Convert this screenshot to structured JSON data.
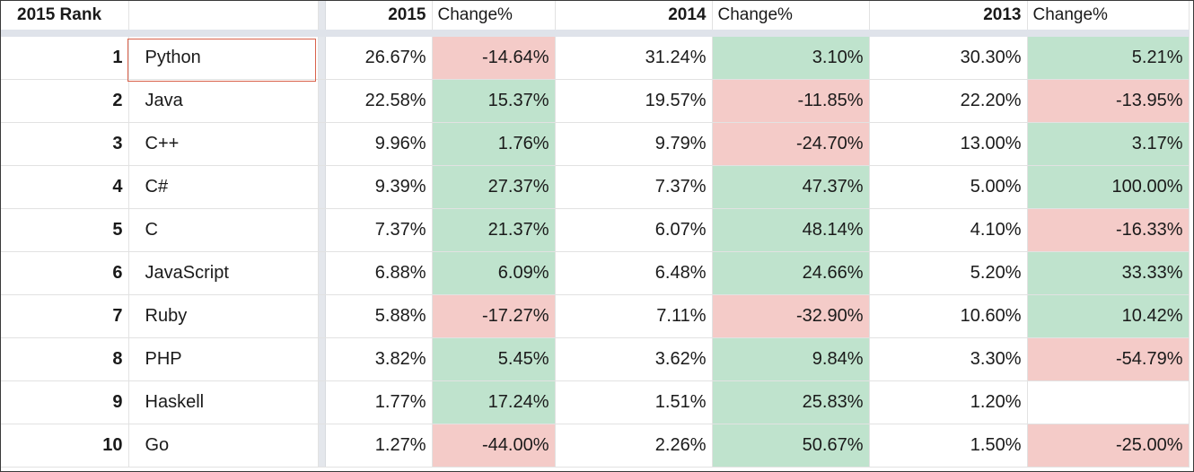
{
  "header": {
    "rank": "2015 Rank",
    "language": "",
    "year2015": "2015",
    "change2015": "Change%",
    "year2014": "2014",
    "change2014": "Change%",
    "year2013": "2013",
    "change2013": "Change%"
  },
  "colors": {
    "positive_fill": "#bfe3cd",
    "negative_fill": "#f4cbc8",
    "selection_border": "#d9624b"
  },
  "selected_cell": "Python",
  "rows": [
    {
      "rank": "1",
      "language": "Python",
      "y2015": "26.67%",
      "c2015": "-14.64%",
      "s2015": "neg",
      "y2014": "31.24%",
      "c2014": "3.10%",
      "s2014": "pos",
      "y2013": "30.30%",
      "c2013": "5.21%",
      "s2013": "pos"
    },
    {
      "rank": "2",
      "language": "Java",
      "y2015": "22.58%",
      "c2015": "15.37%",
      "s2015": "pos",
      "y2014": "19.57%",
      "c2014": "-11.85%",
      "s2014": "neg",
      "y2013": "22.20%",
      "c2013": "-13.95%",
      "s2013": "neg"
    },
    {
      "rank": "3",
      "language": "C++",
      "y2015": "9.96%",
      "c2015": "1.76%",
      "s2015": "pos",
      "y2014": "9.79%",
      "c2014": "-24.70%",
      "s2014": "neg",
      "y2013": "13.00%",
      "c2013": "3.17%",
      "s2013": "pos"
    },
    {
      "rank": "4",
      "language": "C#",
      "y2015": "9.39%",
      "c2015": "27.37%",
      "s2015": "pos",
      "y2014": "7.37%",
      "c2014": "47.37%",
      "s2014": "pos",
      "y2013": "5.00%",
      "c2013": "100.00%",
      "s2013": "pos"
    },
    {
      "rank": "5",
      "language": "C",
      "y2015": "7.37%",
      "c2015": "21.37%",
      "s2015": "pos",
      "y2014": "6.07%",
      "c2014": "48.14%",
      "s2014": "pos",
      "y2013": "4.10%",
      "c2013": "-16.33%",
      "s2013": "neg"
    },
    {
      "rank": "6",
      "language": "JavaScript",
      "y2015": "6.88%",
      "c2015": "6.09%",
      "s2015": "pos",
      "y2014": "6.48%",
      "c2014": "24.66%",
      "s2014": "pos",
      "y2013": "5.20%",
      "c2013": "33.33%",
      "s2013": "pos"
    },
    {
      "rank": "7",
      "language": "Ruby",
      "y2015": "5.88%",
      "c2015": "-17.27%",
      "s2015": "neg",
      "y2014": "7.11%",
      "c2014": "-32.90%",
      "s2014": "neg",
      "y2013": "10.60%",
      "c2013": "10.42%",
      "s2013": "pos"
    },
    {
      "rank": "8",
      "language": "PHP",
      "y2015": "3.82%",
      "c2015": "5.45%",
      "s2015": "pos",
      "y2014": "3.62%",
      "c2014": "9.84%",
      "s2014": "pos",
      "y2013": "3.30%",
      "c2013": "-54.79%",
      "s2013": "neg"
    },
    {
      "rank": "9",
      "language": "Haskell",
      "y2015": "1.77%",
      "c2015": "17.24%",
      "s2015": "pos",
      "y2014": "1.51%",
      "c2014": "25.83%",
      "s2014": "pos",
      "y2013": "1.20%",
      "c2013": "",
      "s2013": "empty"
    },
    {
      "rank": "10",
      "language": "Go",
      "y2015": "1.27%",
      "c2015": "-44.00%",
      "s2015": "neg",
      "y2014": "2.26%",
      "c2014": "50.67%",
      "s2014": "pos",
      "y2013": "1.50%",
      "c2013": "-25.00%",
      "s2013": "neg"
    }
  ]
}
